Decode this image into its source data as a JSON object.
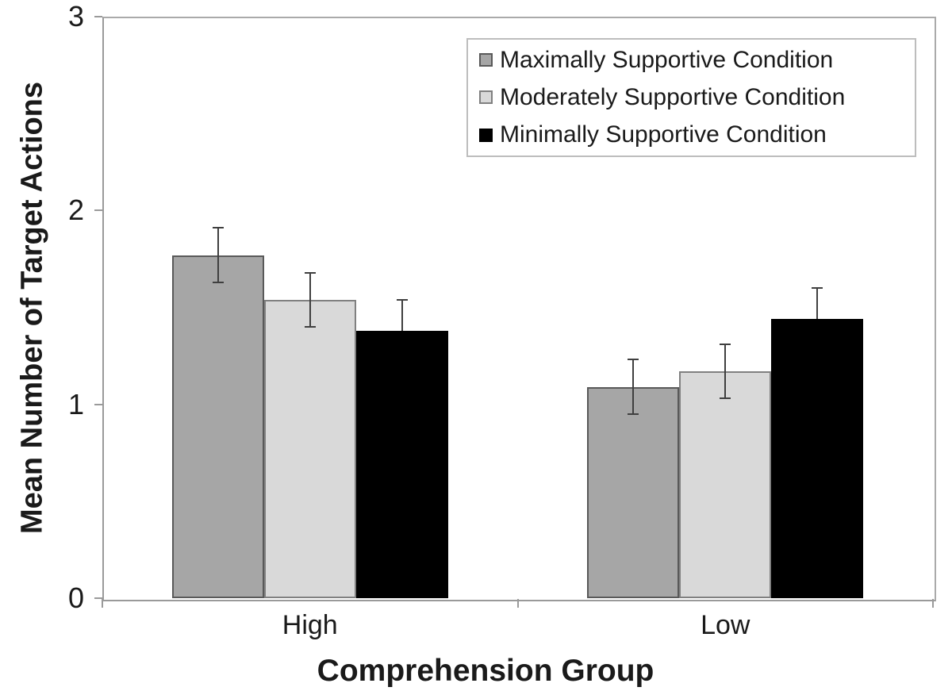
{
  "chart_data": {
    "type": "bar",
    "title": "",
    "xlabel": "Comprehension Group",
    "ylabel": "Mean Number of Target Actions",
    "categories": [
      "High",
      "Low"
    ],
    "series": [
      {
        "name": "Maximally Supportive Condition",
        "values": [
          1.77,
          1.09
        ],
        "errors": [
          0.14,
          0.14
        ],
        "fill": "#a6a6a6",
        "border": "#595959",
        "error_lower_visible": true
      },
      {
        "name": "Moderately Supportive Condition",
        "values": [
          1.54,
          1.17
        ],
        "errors": [
          0.14,
          0.14
        ],
        "fill": "#d9d9d9",
        "border": "#808080",
        "error_lower_visible": true
      },
      {
        "name": "Minimally Supportive Condition",
        "values": [
          1.38,
          1.44
        ],
        "errors": [
          0.16,
          0.16
        ],
        "fill": "#000000",
        "border": "#000000",
        "error_lower_visible": false
      }
    ],
    "ylim": [
      0,
      3
    ],
    "yticks": [
      0,
      1,
      2,
      3
    ],
    "grid": false,
    "legend_position": "top-right",
    "colors": {
      "axis": "#9a9a9a",
      "error_bar": "#3f3f3f",
      "text": "#1a1a1a",
      "background": "#ffffff",
      "legend_border": "#bdbdbd"
    }
  }
}
